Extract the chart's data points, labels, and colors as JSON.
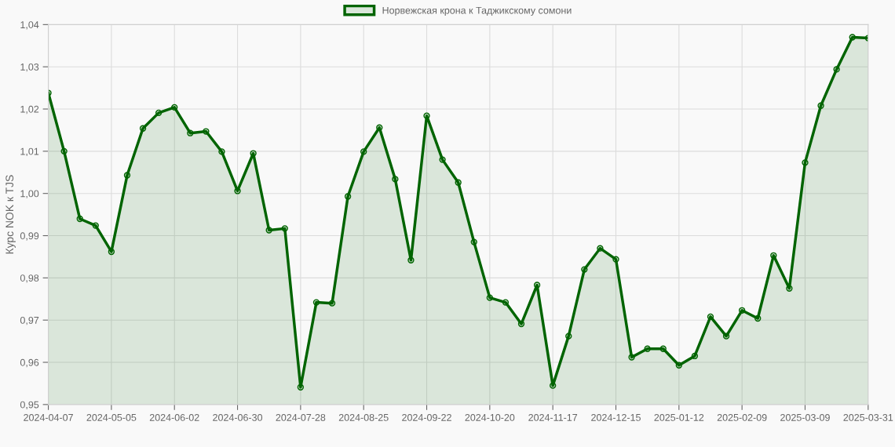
{
  "chart_data": {
    "type": "area",
    "ylabel": "Курс NOK к TJS",
    "categories": [
      "2024-04-07",
      null,
      null,
      null,
      "2024-05-05",
      null,
      null,
      null,
      "2024-06-02",
      null,
      null,
      null,
      "2024-06-30",
      null,
      null,
      null,
      "2024-07-28",
      null,
      null,
      null,
      "2024-08-25",
      null,
      null,
      null,
      "2024-09-22",
      null,
      null,
      null,
      "2024-10-20",
      null,
      null,
      null,
      "2024-11-17",
      null,
      null,
      null,
      "2024-12-15",
      null,
      null,
      null,
      "2025-01-12",
      null,
      null,
      null,
      "2025-02-09",
      null,
      null,
      null,
      "2025-03-09",
      null,
      null,
      null,
      "2025-03-31"
    ],
    "series": [
      {
        "name": "Норвежская крона к Таджикскому сомони",
        "color": "#006400",
        "values": [
          1.0238,
          1.01,
          0.994,
          0.9924,
          0.9862,
          1.0043,
          1.0154,
          1.0191,
          1.0204,
          1.0143,
          1.0147,
          1.0099,
          1.0006,
          1.0095,
          0.9913,
          0.9917,
          0.9541,
          0.9742,
          0.974,
          0.9993,
          1.0099,
          1.0156,
          1.0034,
          0.9842,
          1.0184,
          1.008,
          1.0026,
          0.9885,
          0.9753,
          0.9742,
          0.9691,
          0.9783,
          0.9545,
          0.9662,
          0.982,
          0.987,
          0.9844,
          0.9612,
          0.9632,
          0.9632,
          0.9593,
          0.9615,
          0.9708,
          0.9662,
          0.9723,
          0.9704,
          0.9853,
          0.9775,
          1.0073,
          1.0208,
          1.0294,
          1.037,
          1.0368
        ]
      }
    ],
    "ylim": [
      0.95,
      1.04
    ],
    "yticks": [
      {
        "value": 0.95,
        "label": "0,95"
      },
      {
        "value": 0.96,
        "label": "0,96"
      },
      {
        "value": 0.97,
        "label": "0,97"
      },
      {
        "value": 0.98,
        "label": "0,98"
      },
      {
        "value": 0.99,
        "label": "0,99"
      },
      {
        "value": 1.0,
        "label": "1,00"
      },
      {
        "value": 1.01,
        "label": "1,01"
      },
      {
        "value": 1.02,
        "label": "1,02"
      },
      {
        "value": 1.03,
        "label": "1,03"
      },
      {
        "value": 1.04,
        "label": "1,04"
      }
    ],
    "grid": true,
    "legend": "top",
    "marker": "circle",
    "line_style": "solid"
  }
}
